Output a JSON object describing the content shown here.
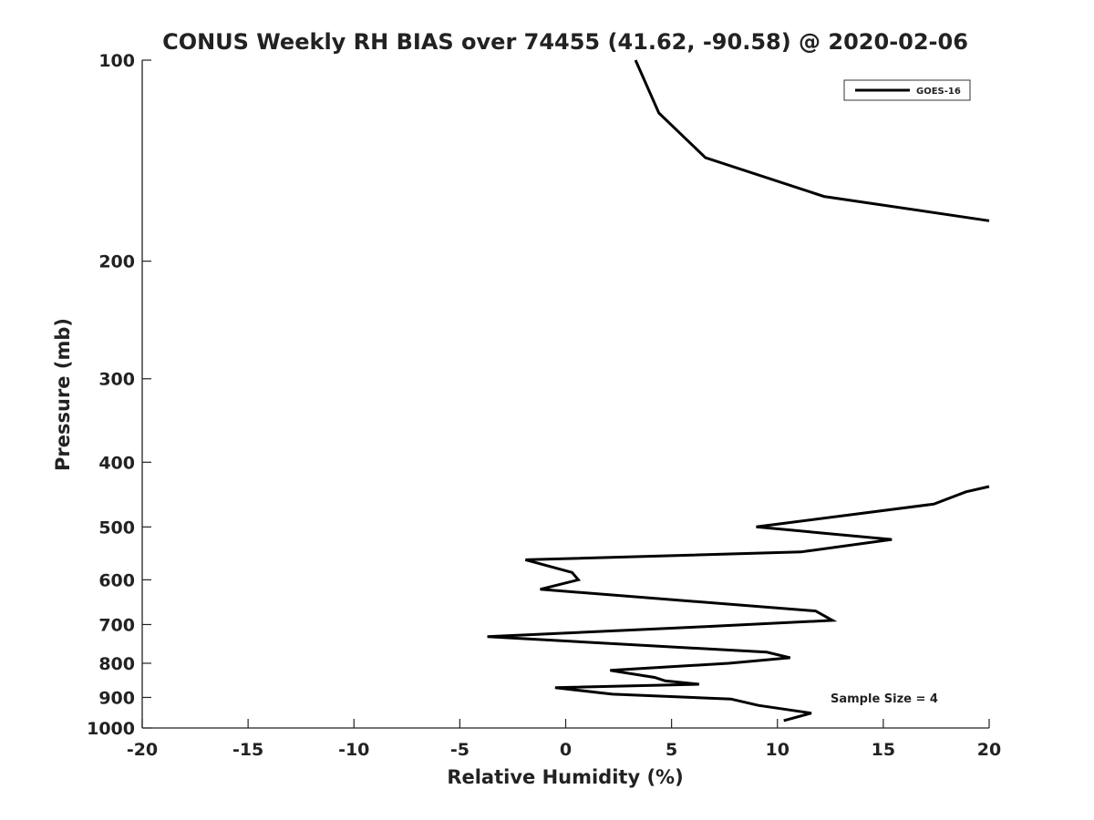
{
  "chart_data": {
    "type": "line",
    "title": "CONUS Weekly RH BIAS over 74455 (41.62, -90.58) @ 2020-02-06",
    "xlabel": "Relative Humidity (%)",
    "ylabel": "Pressure (mb)",
    "xlim": [
      -20,
      20
    ],
    "ylim": [
      100,
      1000
    ],
    "yscale": "log",
    "y_reversed": true,
    "grid": false,
    "legend_position": "top-right",
    "x_ticks": [
      "-20",
      "-15",
      "-10",
      "-5",
      "0",
      "5",
      "10",
      "15",
      "20"
    ],
    "y_ticks": [
      "100",
      "200",
      "300",
      "400",
      "500",
      "600",
      "700",
      "800",
      "900",
      "1000"
    ],
    "annotation": "Sample Size = 4",
    "series": [
      {
        "name": "GOES-16",
        "color": "#000000",
        "segments": [
          [
            {
              "x": 3.3,
              "y": 100
            },
            {
              "x": 4.4,
              "y": 120
            },
            {
              "x": 6.6,
              "y": 140
            },
            {
              "x": 12.2,
              "y": 160
            },
            {
              "x": 20.0,
              "y": 174
            }
          ],
          [
            {
              "x": 20.0,
              "y": 435
            },
            {
              "x": 18.9,
              "y": 443
            },
            {
              "x": 17.4,
              "y": 462
            },
            {
              "x": 9.0,
              "y": 500
            },
            {
              "x": 15.4,
              "y": 522
            },
            {
              "x": 11.1,
              "y": 545
            },
            {
              "x": -1.9,
              "y": 560
            },
            {
              "x": 0.3,
              "y": 585
            },
            {
              "x": 0.6,
              "y": 600
            },
            {
              "x": -1.2,
              "y": 620
            },
            {
              "x": 11.8,
              "y": 668
            },
            {
              "x": 12.6,
              "y": 690
            },
            {
              "x": 6.6,
              "y": 705
            },
            {
              "x": -3.7,
              "y": 730
            },
            {
              "x": 9.5,
              "y": 770
            },
            {
              "x": 10.6,
              "y": 785
            },
            {
              "x": 7.7,
              "y": 800
            },
            {
              "x": 2.1,
              "y": 820
            },
            {
              "x": 4.2,
              "y": 840
            },
            {
              "x": 4.7,
              "y": 850
            },
            {
              "x": 6.3,
              "y": 860
            },
            {
              "x": -0.5,
              "y": 870
            },
            {
              "x": 2.2,
              "y": 890
            },
            {
              "x": 7.8,
              "y": 905
            },
            {
              "x": 9.1,
              "y": 925
            },
            {
              "x": 11.6,
              "y": 950
            },
            {
              "x": 10.3,
              "y": 975
            }
          ]
        ]
      }
    ]
  }
}
